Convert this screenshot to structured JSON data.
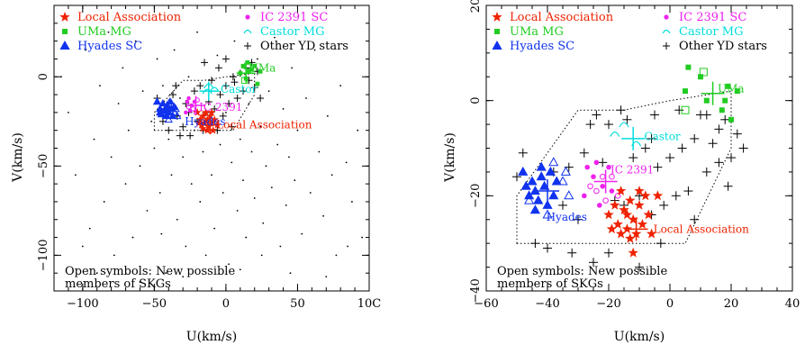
{
  "colors": {
    "local": "#ee2200",
    "uma": "#22cc22",
    "hyades": "#1133ee",
    "ic2391": "#ee22ee",
    "castor": "#00dddd",
    "other": "#000000"
  },
  "legend": {
    "local": "Local Association",
    "uma": "UMa MG",
    "hyades": "Hyades SC",
    "ic2391": "IC 2391 SC",
    "castor": "Castor MG",
    "other": "Other YD stars"
  },
  "note_lines": [
    "Open symbols: New possible",
    "members of SKGs"
  ],
  "chart_data": [
    {
      "type": "scatter",
      "panel": "left",
      "xlabel": "U(km/s)",
      "ylabel": "V(km/s)",
      "xlim": [
        -120,
        100
      ],
      "ylim": [
        -120,
        40
      ],
      "xticks": [
        -100,
        -50,
        0,
        50,
        100
      ],
      "xtick_labels": [
        "−100",
        "−50",
        "0",
        "50",
        "10С"
      ],
      "yticks": [
        -100,
        -50,
        0
      ],
      "ytick_labels": [
        "−100",
        "−50",
        "0"
      ],
      "annotations": [
        {
          "text": "UMa",
          "x": 15,
          "y": 5,
          "color": "uma"
        },
        {
          "text": "Castor",
          "x": -5,
          "y": -7,
          "color": "castor"
        },
        {
          "text": "IC 2391",
          "x": -20,
          "y": -17,
          "color": "ic2391"
        },
        {
          "text": "Hyades",
          "x": -30,
          "y": -25,
          "color": "hyades"
        },
        {
          "text": "Local Association",
          "x": -8,
          "y": -27,
          "color": "local"
        }
      ],
      "centers": [
        {
          "group": "uma",
          "x": 14,
          "y": 2
        },
        {
          "group": "castor",
          "x": -12,
          "y": -8
        },
        {
          "group": "ic2391",
          "x": -21,
          "y": -16
        },
        {
          "group": "hyades",
          "x": -40,
          "y": -18
        },
        {
          "group": "local",
          "x": -11,
          "y": -27
        }
      ],
      "field_stars": [
        [
          -110,
          -20
        ],
        [
          -105,
          -55
        ],
        [
          -98,
          15
        ],
        [
          -95,
          -85
        ],
        [
          -92,
          -35
        ],
        [
          -88,
          -5
        ],
        [
          -85,
          -70
        ],
        [
          -82,
          25
        ],
        [
          -80,
          -45
        ],
        [
          -78,
          -100
        ],
        [
          -75,
          -15
        ],
        [
          -72,
          5
        ],
        [
          -70,
          -60
        ],
        [
          -68,
          -30
        ],
        [
          -65,
          -90
        ],
        [
          -63,
          20
        ],
        [
          -60,
          -50
        ],
        [
          -58,
          -8
        ],
        [
          -55,
          -75
        ],
        [
          -52,
          -25
        ],
        [
          -50,
          -40
        ],
        [
          -48,
          10
        ],
        [
          -46,
          -65
        ],
        [
          -44,
          -5
        ],
        [
          -42,
          -110
        ],
        [
          -40,
          -35
        ],
        [
          -38,
          -55
        ],
        [
          -36,
          15
        ],
        [
          -34,
          -80
        ],
        [
          -32,
          -12
        ],
        [
          -30,
          -45
        ],
        [
          -28,
          -95
        ],
        [
          -26,
          0
        ],
        [
          -24,
          -60
        ],
        [
          -22,
          -30
        ],
        [
          -20,
          25
        ],
        [
          -18,
          -70
        ],
        [
          -16,
          -42
        ],
        [
          -14,
          -100
        ],
        [
          -12,
          -5
        ],
        [
          -10,
          -55
        ],
        [
          -8,
          -85
        ],
        [
          -6,
          12
        ],
        [
          -4,
          -38
        ],
        [
          -2,
          -65
        ],
        [
          0,
          -20
        ],
        [
          2,
          -105
        ],
        [
          4,
          -48
        ],
        [
          6,
          20
        ],
        [
          8,
          -75
        ],
        [
          10,
          -35
        ],
        [
          12,
          -58
        ],
        [
          14,
          -90
        ],
        [
          16,
          -15
        ],
        [
          18,
          -42
        ],
        [
          20,
          -68
        ],
        [
          22,
          10
        ],
        [
          24,
          -28
        ],
        [
          26,
          -82
        ],
        [
          28,
          -50
        ],
        [
          30,
          -8
        ],
        [
          32,
          -62
        ],
        [
          34,
          22
        ],
        [
          36,
          -38
        ],
        [
          38,
          -95
        ],
        [
          40,
          -18
        ],
        [
          42,
          -72
        ],
        [
          44,
          -45
        ],
        [
          46,
          5
        ],
        [
          48,
          -58
        ],
        [
          50,
          -30
        ],
        [
          53,
          -88
        ],
        [
          56,
          -12
        ],
        [
          59,
          -65
        ],
        [
          62,
          15
        ],
        [
          65,
          -42
        ],
        [
          68,
          -78
        ],
        [
          71,
          -22
        ],
        [
          74,
          -55
        ],
        [
          77,
          -100
        ],
        [
          80,
          -5
        ],
        [
          84,
          -48
        ],
        [
          88,
          -70
        ],
        [
          92,
          -30
        ],
        [
          95,
          -90
        ],
        [
          -90,
          -110
        ],
        [
          -60,
          -115
        ],
        [
          -30,
          -112
        ],
        [
          10,
          -108
        ],
        [
          45,
          -110
        ],
        [
          70,
          -112
        ],
        [
          -100,
          -95
        ],
        [
          85,
          -95
        ],
        [
          -115,
          0
        ],
        [
          -45,
          -88
        ],
        [
          25,
          -100
        ]
      ],
      "other_stars": [
        [
          -48,
          -12
        ],
        [
          -44,
          -25
        ],
        [
          -40,
          -30
        ],
        [
          -37,
          -10
        ],
        [
          -34,
          -22
        ],
        [
          -30,
          -28
        ],
        [
          -28,
          -15
        ],
        [
          -25,
          -33
        ],
        [
          -22,
          -8
        ],
        [
          -20,
          -25
        ],
        [
          -18,
          -5
        ],
        [
          -16,
          -30
        ],
        [
          -14,
          -20
        ],
        [
          -12,
          -14
        ],
        [
          -10,
          -2
        ],
        [
          -8,
          -18
        ],
        [
          -6,
          -30
        ],
        [
          -4,
          -10
        ],
        [
          -2,
          -22
        ],
        [
          0,
          -5
        ],
        [
          2,
          -15
        ],
        [
          4,
          -28
        ],
        [
          6,
          -3
        ],
        [
          8,
          -12
        ],
        [
          10,
          2
        ],
        [
          12,
          -8
        ],
        [
          14,
          5
        ],
        [
          16,
          -2
        ],
        [
          18,
          8
        ],
        [
          20,
          -6
        ],
        [
          22,
          3
        ],
        [
          24,
          -12
        ],
        [
          -35,
          -5
        ],
        [
          -26,
          -20
        ],
        [
          -5,
          5
        ],
        [
          0,
          10
        ],
        [
          5,
          0
        ],
        [
          -15,
          8
        ],
        [
          -42,
          -18
        ],
        [
          -32,
          -33
        ]
      ],
      "local_stars": [
        [
          -20,
          -20
        ],
        [
          -18,
          -24
        ],
        [
          -17,
          -27
        ],
        [
          -16,
          -22
        ],
        [
          -15,
          -26
        ],
        [
          -14,
          -20
        ],
        [
          -13,
          -24
        ],
        [
          -12,
          -28
        ],
        [
          -11,
          -22
        ],
        [
          -10,
          -26
        ],
        [
          -9,
          -30
        ],
        [
          -8,
          -24
        ],
        [
          -13,
          -30
        ],
        [
          -16,
          -29
        ],
        [
          -19,
          -26
        ],
        [
          -10,
          -20
        ],
        [
          -6,
          -27
        ],
        [
          -14,
          -25
        ]
      ],
      "uma_stars": [
        [
          10,
          2
        ],
        [
          12,
          6
        ],
        [
          14,
          -1
        ],
        [
          16,
          3
        ],
        [
          18,
          4
        ],
        [
          20,
          6
        ],
        [
          22,
          -4
        ],
        [
          15,
          8
        ],
        [
          24,
          3
        ]
      ],
      "uma_open": [
        [
          15,
          6
        ],
        [
          13,
          -2
        ]
      ],
      "hyades_stars": [
        [
          -48,
          -14
        ],
        [
          -46,
          -18
        ],
        [
          -45,
          -21
        ],
        [
          -44,
          -15
        ],
        [
          -43,
          -19
        ],
        [
          -42,
          -22
        ],
        [
          -41,
          -16
        ],
        [
          -40,
          -20
        ],
        [
          -39,
          -14
        ],
        [
          -38,
          -18
        ],
        [
          -37,
          -22
        ],
        [
          -36,
          -17
        ],
        [
          -46,
          -20
        ],
        [
          -42,
          -18
        ]
      ],
      "hyades_open": [
        [
          -40,
          -24
        ],
        [
          -38,
          -15
        ],
        [
          -36,
          -20
        ],
        [
          -35,
          -18
        ],
        [
          -34,
          -22
        ]
      ],
      "ic_stars": [
        [
          -26,
          -12
        ],
        [
          -24,
          -16
        ],
        [
          -22,
          -14
        ],
        [
          -25,
          -19
        ],
        [
          -28,
          -20
        ],
        [
          -27,
          -14
        ]
      ],
      "ic_open": [
        [
          -26,
          -17
        ],
        [
          -23,
          -18
        ],
        [
          -21,
          -20
        ],
        [
          -20,
          -13
        ]
      ],
      "castor_stars": [
        [
          -12,
          -5
        ],
        [
          -13,
          -8
        ],
        [
          -8,
          -7
        ]
      ]
    },
    {
      "type": "scatter",
      "panel": "right",
      "xlabel": "U(km/s)",
      "ylabel": "V(km/s)",
      "xlim": [
        -60,
        40
      ],
      "ylim": [
        -40,
        20
      ],
      "xticks": [
        -60,
        -40,
        -20,
        0,
        20,
        40
      ],
      "xtick_labels": [
        "−60",
        "−40",
        "−20",
        "0",
        "20",
        "40"
      ],
      "yticks": [
        -40,
        -20,
        0,
        20
      ],
      "ytick_labels": [
        "−40",
        "−20",
        "0",
        "20"
      ],
      "annotations": [
        {
          "text": "UMa",
          "x": 15,
          "y": 2.5,
          "color": "uma"
        },
        {
          "text": "Castor",
          "x": -9,
          "y": -7.5,
          "color": "castor"
        },
        {
          "text": "IC 2391",
          "x": -20,
          "y": -14.5,
          "color": "ic2391"
        },
        {
          "text": "Hyades",
          "x": -41,
          "y": -24.5,
          "color": "hyades"
        },
        {
          "text": "Local Association",
          "x": -6,
          "y": -27,
          "color": "local"
        }
      ],
      "centers": [
        {
          "group": "uma",
          "x": 14,
          "y": 1.5
        },
        {
          "group": "castor",
          "x": -12,
          "y": -8
        },
        {
          "group": "ic2391",
          "x": -21,
          "y": -17
        },
        {
          "group": "hyades",
          "x": -40,
          "y": -19
        },
        {
          "group": "local",
          "x": -11,
          "y": -27
        }
      ],
      "field_stars": [],
      "other_stars": [
        [
          -48,
          -11
        ],
        [
          -50,
          -16
        ],
        [
          -44,
          -30
        ],
        [
          -40,
          -31
        ],
        [
          -38,
          -15
        ],
        [
          -35,
          -22
        ],
        [
          -33,
          -14
        ],
        [
          -30,
          -25
        ],
        [
          -28,
          -11
        ],
        [
          -26,
          -5
        ],
        [
          -24,
          -3
        ],
        [
          -22,
          -13
        ],
        [
          -20,
          -5
        ],
        [
          -18,
          -21
        ],
        [
          -16,
          -2
        ],
        [
          -14,
          -4
        ],
        [
          -12,
          -12
        ],
        [
          -10,
          -20
        ],
        [
          -8,
          -10
        ],
        [
          -6,
          -8
        ],
        [
          -4,
          -14
        ],
        [
          -2,
          -22
        ],
        [
          0,
          -12
        ],
        [
          2,
          -20
        ],
        [
          4,
          -10
        ],
        [
          6,
          -19
        ],
        [
          8,
          -8
        ],
        [
          10,
          -3
        ],
        [
          12,
          -15
        ],
        [
          14,
          -9
        ],
        [
          16,
          -6
        ],
        [
          18,
          -4
        ],
        [
          20,
          -12
        ],
        [
          22,
          -7
        ],
        [
          24,
          -10
        ],
        [
          19,
          -18
        ],
        [
          16,
          -13
        ],
        [
          -6,
          -24
        ],
        [
          -3,
          -30
        ],
        [
          -5,
          -3
        ],
        [
          -32,
          -32
        ],
        [
          -15,
          -22
        ],
        [
          8,
          -25
        ],
        [
          12,
          -3
        ],
        [
          -20,
          -32
        ],
        [
          -25,
          -34
        ],
        [
          -10,
          -35
        ],
        [
          3,
          -2
        ]
      ],
      "local_stars": [
        [
          -20,
          -24
        ],
        [
          -18,
          -22
        ],
        [
          -17,
          -26
        ],
        [
          -16,
          -19
        ],
        [
          -15,
          -23
        ],
        [
          -14,
          -27
        ],
        [
          -13,
          -21
        ],
        [
          -12,
          -25
        ],
        [
          -11,
          -28
        ],
        [
          -10,
          -22
        ],
        [
          -9,
          -26
        ],
        [
          -8,
          -20
        ],
        [
          -7,
          -24
        ],
        [
          -13,
          -29
        ],
        [
          -16,
          -28
        ],
        [
          -19,
          -27
        ],
        [
          -10,
          -19
        ],
        [
          -6,
          -28
        ],
        [
          -14,
          -24
        ],
        [
          -4,
          -20
        ],
        [
          -12,
          -32
        ]
      ],
      "uma_stars": [
        [
          5,
          2
        ],
        [
          6,
          7
        ],
        [
          10,
          5
        ],
        [
          17,
          -2
        ],
        [
          18,
          0
        ],
        [
          19,
          3
        ],
        [
          20,
          -4
        ],
        [
          22,
          2
        ],
        [
          12,
          0
        ]
      ],
      "uma_open": [
        [
          11,
          6
        ],
        [
          5,
          -2
        ]
      ],
      "hyades_stars": [
        [
          -48,
          -15
        ],
        [
          -47,
          -18
        ],
        [
          -46,
          -20
        ],
        [
          -45,
          -17
        ],
        [
          -44,
          -19
        ],
        [
          -43,
          -21
        ],
        [
          -42,
          -14
        ],
        [
          -41,
          -18
        ],
        [
          -40,
          -22
        ],
        [
          -39,
          -15
        ],
        [
          -38,
          -20
        ],
        [
          -37,
          -17
        ],
        [
          -44,
          -23
        ],
        [
          -42,
          -16
        ]
      ],
      "hyades_open": [
        [
          -40,
          -24
        ],
        [
          -38,
          -13
        ],
        [
          -35,
          -17
        ],
        [
          -33,
          -20
        ],
        [
          -34,
          -15
        ],
        [
          -46,
          -21
        ]
      ],
      "ic_stars": [
        [
          -28,
          -20
        ],
        [
          -27,
          -14
        ],
        [
          -25,
          -16
        ],
        [
          -24,
          -13
        ],
        [
          -22,
          -18
        ],
        [
          -20,
          -14
        ],
        [
          -19,
          -19
        ],
        [
          -23,
          -22
        ]
      ],
      "ic_open": [
        [
          -26,
          -18
        ],
        [
          -24,
          -19
        ],
        [
          -21,
          -21
        ],
        [
          -19,
          -16
        ],
        [
          -17,
          -20
        ],
        [
          -22,
          -16
        ]
      ],
      "castor_stars": [
        [
          -18,
          -7
        ],
        [
          -15,
          -5
        ],
        [
          -11,
          -9
        ]
      ]
    }
  ]
}
